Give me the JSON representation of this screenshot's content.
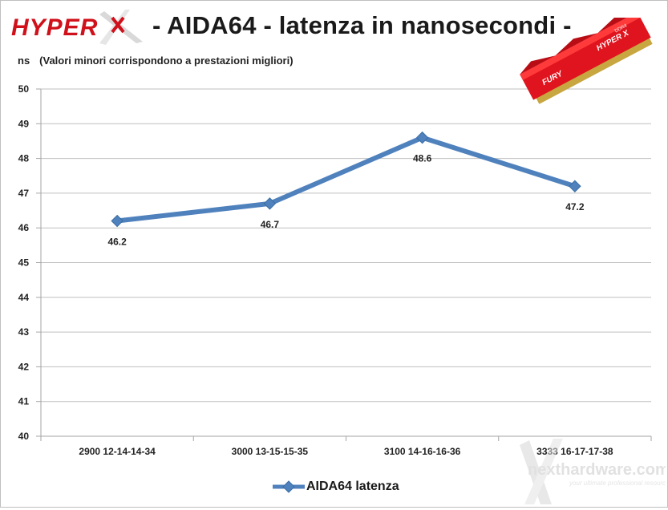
{
  "header": {
    "logo_text": "HYPER X",
    "title": "- AIDA64 - latenza in nanosecondi -",
    "unit": "ns",
    "note": "(Valori minori corrispondono a prestazioni  migliori)"
  },
  "images": {
    "ram_module_text": "HYPER X FURY DDR4",
    "watermark_text": "nexthardware.com",
    "watermark_tagline": "your ultimate professional resource"
  },
  "chart_data": {
    "type": "line",
    "categories": [
      "2900 12-14-14-34",
      "3000 13-15-15-35",
      "3100 14-16-16-36",
      "3333 16-17-17-38"
    ],
    "series": [
      {
        "name": "AIDA64 latenza",
        "values": [
          46.2,
          46.7,
          48.6,
          47.2
        ]
      }
    ],
    "data_labels": [
      "46.2",
      "46.7",
      "48.6",
      "47.2"
    ],
    "ylim": [
      40,
      50
    ],
    "yticks": [
      "40",
      "41",
      "42",
      "43",
      "44",
      "45",
      "46",
      "47",
      "48",
      "49",
      "50"
    ],
    "ylabel": "ns",
    "grid": true,
    "legend_position": "bottom",
    "colors": {
      "series": "#4f81bd",
      "series_dark": "#3a6ea5",
      "grid": "#bfbfbf",
      "text": "#222222"
    }
  }
}
